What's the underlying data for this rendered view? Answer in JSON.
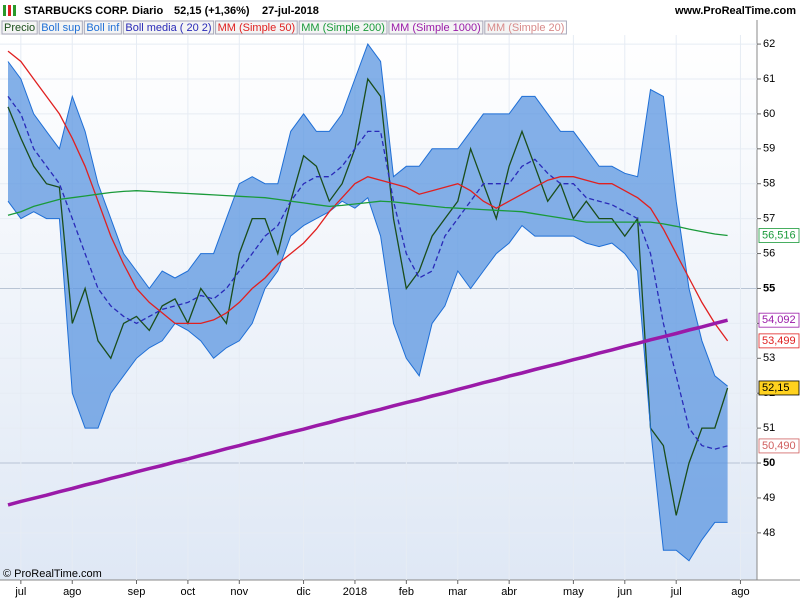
{
  "chart_data": {
    "type": "line",
    "title": "STARBUCKS CORP.",
    "period": "Diario",
    "quote": "52,15 (+1,36%)",
    "date": "27-jul-2018",
    "site": "www.ProRealTime.com",
    "footer": "© ProRealTime.com",
    "categories": [
      null,
      "jul",
      null,
      null,
      null,
      "ago",
      null,
      null,
      null,
      null,
      "sep",
      null,
      null,
      null,
      "oct",
      null,
      null,
      null,
      "nov",
      null,
      null,
      null,
      null,
      "dic",
      null,
      null,
      null,
      "2018",
      null,
      null,
      null,
      "feb",
      null,
      null,
      null,
      "mar",
      null,
      null,
      null,
      "abr",
      null,
      null,
      null,
      null,
      "may",
      null,
      null,
      null,
      "jun",
      null,
      null,
      null,
      "jul",
      null,
      null,
      null,
      null,
      "ago"
    ],
    "ylim": [
      46.65,
      62.26
    ],
    "yticks": [
      48,
      49,
      50,
      51,
      52,
      53,
      54,
      55,
      56,
      57,
      58,
      59,
      60,
      61,
      62
    ],
    "bold_yticks": [
      50,
      55
    ],
    "grid": true,
    "series": [
      {
        "name": "Precio",
        "color": "#1a4d1a",
        "values": [
          60.2,
          59.3,
          58.5,
          58.0,
          57.9,
          54.0,
          55.0,
          53.5,
          53.0,
          54.0,
          54.2,
          53.8,
          54.5,
          54.7,
          54.0,
          55.0,
          54.5,
          54.0,
          56.0,
          57.0,
          57.0,
          56.0,
          57.5,
          58.8,
          58.5,
          57.5,
          58.0,
          59.0,
          61.0,
          60.5,
          57.0,
          55.0,
          55.5,
          56.5,
          57.0,
          57.5,
          59.0,
          58.0,
          57.0,
          58.5,
          59.5,
          58.5,
          57.5,
          58.0,
          57.0,
          57.5,
          57.0,
          57.0,
          56.5,
          57.0,
          51.0,
          50.5,
          48.5,
          50.0,
          51.0,
          51.0,
          52.15,
          null
        ],
        "last_label": "52,15",
        "label_bg": "#ffd21f",
        "label_fg": "#000000"
      },
      {
        "name": "Boll sup",
        "color": "#1f6fd6",
        "band": "upper",
        "values": [
          61.5,
          61,
          60,
          59.5,
          59,
          60.5,
          59.5,
          58,
          57,
          56,
          55.5,
          55,
          55.5,
          55.3,
          55.5,
          56,
          56,
          57,
          58,
          58.2,
          58,
          58,
          59.5,
          60,
          59.5,
          59.5,
          60,
          61,
          62,
          61.5,
          58.2,
          58.5,
          58.5,
          59,
          59,
          59,
          59.5,
          60,
          60,
          60,
          60.5,
          60.5,
          60,
          59.5,
          59.5,
          59,
          58.5,
          58.5,
          58.3,
          58.2,
          60.7,
          60.5,
          57.5,
          55,
          53.5,
          52.5,
          52.2,
          null
        ]
      },
      {
        "name": "Boll inf",
        "color": "#1f6fd6",
        "band": "lower",
        "values": [
          57.5,
          57,
          57.2,
          57,
          57,
          52,
          51,
          51,
          52,
          52.5,
          53,
          53.3,
          53.5,
          54,
          53.8,
          53.5,
          53,
          53.3,
          53.5,
          54,
          55,
          55.5,
          56.5,
          56.8,
          57,
          57.2,
          57.5,
          57.3,
          57.6,
          56.5,
          54,
          53,
          52.5,
          54,
          54.5,
          55.5,
          55,
          55.5,
          56,
          56.3,
          56.8,
          56.5,
          56.5,
          56.5,
          56.5,
          56.3,
          56.2,
          56.3,
          56,
          55.5,
          51,
          47.5,
          47.5,
          47.2,
          47.8,
          48.3,
          48.3,
          null
        ]
      },
      {
        "name": "Boll media ( 20 2)",
        "color": "#2a2ab8",
        "dash": true,
        "values": [
          60.5,
          60,
          59,
          58.5,
          58,
          57,
          56,
          55,
          54.5,
          54.2,
          54,
          54.2,
          54.4,
          54.5,
          54.6,
          54.8,
          54.7,
          55,
          55.5,
          56,
          56.5,
          56.8,
          57.5,
          58,
          58.2,
          58.2,
          58.5,
          59,
          59.5,
          59.5,
          57.5,
          56,
          55.3,
          55.5,
          56.5,
          57,
          57.5,
          58,
          58,
          58,
          58.5,
          58.7,
          58.3,
          58,
          58,
          57.6,
          57.5,
          57.4,
          57.2,
          57,
          56,
          54,
          52.5,
          51,
          50.5,
          50.4,
          50.49,
          null
        ]
      },
      {
        "name": "MM (Simple 50)",
        "color": "#e02020",
        "values": [
          61.8,
          61.5,
          61,
          60.5,
          60,
          59.3,
          58.5,
          57.5,
          56.5,
          55.7,
          55,
          54.6,
          54.3,
          54,
          54,
          54,
          54.1,
          54.3,
          54.6,
          55,
          55.3,
          55.7,
          56,
          56.3,
          56.7,
          57.2,
          57.6,
          58,
          58.2,
          58.1,
          58,
          57.9,
          57.7,
          57.8,
          57.9,
          58,
          57.8,
          57.5,
          57.3,
          57.5,
          57.7,
          57.9,
          58.1,
          58.2,
          58.2,
          58.1,
          58,
          58,
          57.8,
          57.6,
          57.3,
          56.7,
          56,
          55.3,
          54.6,
          54,
          53.499,
          null
        ],
        "last_label": "53,499",
        "label_bg": "#ffffff",
        "label_fg": "#e02020"
      },
      {
        "name": "MM (Simple 200)",
        "color": "#1a9a3a",
        "values": [
          57.1,
          57.2,
          57.35,
          57.45,
          57.55,
          57.6,
          57.65,
          57.7,
          57.75,
          57.78,
          57.8,
          57.78,
          57.76,
          57.74,
          57.72,
          57.7,
          57.68,
          57.66,
          57.64,
          57.62,
          57.6,
          57.55,
          57.5,
          57.45,
          57.4,
          57.35,
          57.38,
          57.42,
          57.46,
          57.5,
          57.48,
          57.44,
          57.4,
          57.36,
          57.32,
          57.3,
          57.28,
          57.26,
          57.24,
          57.22,
          57.2,
          57.14,
          57.08,
          57.02,
          56.96,
          56.9,
          56.9,
          56.9,
          56.9,
          56.9,
          56.9,
          56.85,
          56.78,
          56.7,
          56.63,
          56.56,
          56.516,
          null
        ],
        "last_label": "56,516",
        "label_bg": "#ffffff",
        "label_fg": "#1a9a3a"
      },
      {
        "name": "MM (Simple 1000)",
        "color": "#9a1aa8",
        "width": 3.5,
        "values": [
          48.8,
          48.9,
          48.99,
          49.08,
          49.18,
          49.27,
          49.37,
          49.46,
          49.56,
          49.65,
          49.75,
          49.84,
          49.93,
          50.03,
          50.12,
          50.22,
          50.31,
          50.41,
          50.5,
          50.6,
          50.69,
          50.79,
          50.88,
          50.97,
          51.07,
          51.16,
          51.26,
          51.35,
          51.45,
          51.54,
          51.64,
          51.73,
          51.82,
          51.92,
          52.01,
          52.11,
          52.2,
          52.3,
          52.39,
          52.49,
          52.58,
          52.68,
          52.77,
          52.86,
          52.96,
          53.05,
          53.15,
          53.24,
          53.34,
          53.43,
          53.53,
          53.62,
          53.71,
          53.81,
          53.9,
          54.0,
          54.092,
          null
        ],
        "last_label": "54,092",
        "label_bg": "#ffffff",
        "label_fg": "#9a1aa8"
      },
      {
        "name": "MM (Simple 20)",
        "color": "#d88a8a",
        "hidden": true,
        "values": [
          60.5,
          60,
          59,
          58.5,
          58,
          57,
          56,
          55,
          54.5,
          54.2,
          54,
          54.2,
          54.4,
          54.5,
          54.6,
          54.8,
          54.7,
          55,
          55.5,
          56,
          56.5,
          56.8,
          57.5,
          58,
          58.2,
          58.2,
          58.5,
          59,
          59.5,
          59.5,
          57.5,
          56,
          55.3,
          55.5,
          56.5,
          57,
          57.5,
          58,
          58,
          58,
          58.5,
          58.7,
          58.3,
          58,
          58,
          57.6,
          57.5,
          57.4,
          57.2,
          57,
          56,
          54,
          52.5,
          51,
          50.5,
          50.4,
          50.49,
          null
        ],
        "last_label": "50,490",
        "label_bg": "#ffffff",
        "label_fg": "#d06060"
      }
    ]
  }
}
